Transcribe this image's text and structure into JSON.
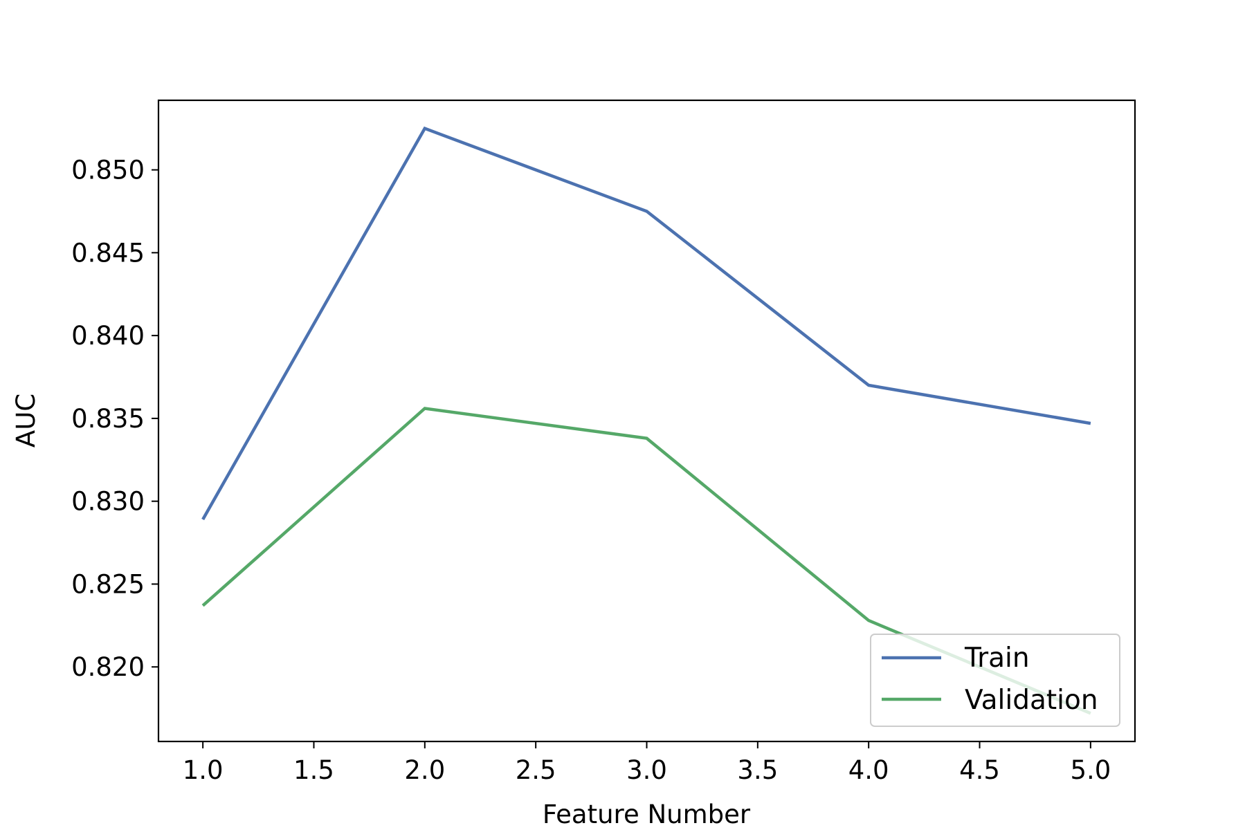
{
  "chart_data": {
    "type": "line",
    "title": "",
    "xlabel": "Feature Number",
    "ylabel": "AUC",
    "x": [
      1.0,
      2.0,
      3.0,
      4.0,
      5.0
    ],
    "series": [
      {
        "name": "Train",
        "color": "#4c72b0",
        "values": [
          0.8289,
          0.8525,
          0.8475,
          0.837,
          0.8347
        ]
      },
      {
        "name": "Validation",
        "color": "#55a868",
        "values": [
          0.8237,
          0.8356,
          0.8338,
          0.8228,
          0.8172
        ]
      }
    ],
    "xlim": [
      0.8,
      5.2
    ],
    "ylim": [
      0.8155,
      0.8542
    ],
    "xticks": [
      "1.0",
      "1.5",
      "2.0",
      "2.5",
      "3.0",
      "3.5",
      "4.0",
      "4.5",
      "5.0"
    ],
    "yticks": [
      "0.820",
      "0.825",
      "0.830",
      "0.835",
      "0.840",
      "0.845",
      "0.850"
    ],
    "grid": false,
    "legend_position": "lower right"
  }
}
